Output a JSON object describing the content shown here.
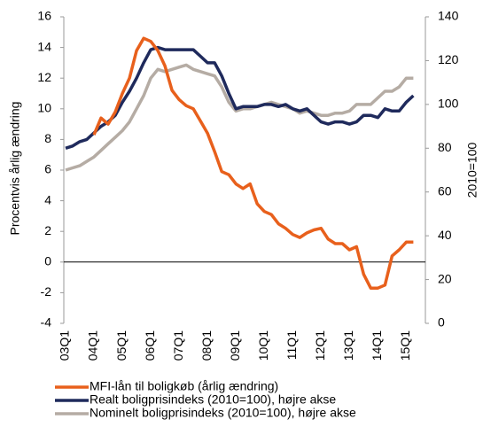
{
  "chart_data": {
    "type": "line",
    "ylabel": "Procentvis årlig ændring",
    "y2label": "2010=100",
    "categories": [
      "03Q1",
      null,
      null,
      null,
      "04Q1",
      null,
      null,
      null,
      "05Q1",
      null,
      null,
      null,
      "06Q1",
      null,
      null,
      null,
      "07Q1",
      null,
      null,
      null,
      "08Q1",
      null,
      null,
      null,
      "09Q1",
      null,
      null,
      null,
      "10Q1",
      null,
      null,
      null,
      "11Q1",
      null,
      null,
      null,
      "12Q1",
      null,
      null,
      null,
      "13Q1",
      null,
      null,
      null,
      "14Q1",
      null,
      null,
      null,
      "15Q1",
      null
    ],
    "ylim": [
      -4,
      16
    ],
    "yticks": [
      -4,
      -2,
      0,
      2,
      4,
      6,
      8,
      10,
      12,
      14,
      16
    ],
    "y2lim": [
      0,
      140
    ],
    "y2ticks": [
      0,
      20,
      40,
      60,
      80,
      100,
      120,
      140
    ],
    "series": [
      {
        "name": "MFI-lån til boligkøb (årlig ændring)",
        "color": "#e8601c",
        "values": [
          null,
          null,
          null,
          null,
          8.3,
          9.4,
          9.0,
          9.8,
          11.0,
          12.0,
          13.8,
          14.6,
          14.4,
          13.8,
          12.8,
          11.2,
          10.6,
          10.2,
          10.0,
          9.2,
          8.4,
          7.2,
          5.9,
          5.7,
          5.1,
          4.8,
          5.1,
          3.8,
          3.3,
          3.1,
          2.5,
          2.2,
          1.8,
          1.6,
          1.9,
          2.1,
          2.2,
          1.5,
          1.2,
          1.2,
          0.8,
          1.0,
          -0.8,
          -1.7,
          -1.7,
          -1.5,
          0.4,
          0.8,
          1.3,
          1.3
        ]
      },
      {
        "name": "Realt boligprisindeks (2010=100), højre akse",
        "color": "#1f2a5c",
        "axis": "y2",
        "values": [
          80,
          81,
          83,
          84,
          87,
          90,
          92,
          95,
          101,
          106,
          112,
          119,
          125,
          126,
          125,
          125,
          125,
          125,
          125,
          122,
          119,
          119,
          113,
          105,
          98,
          99,
          99,
          99,
          100,
          100,
          99,
          100,
          98,
          97,
          98,
          95,
          92,
          91,
          92,
          92,
          91,
          92,
          95,
          95,
          94,
          98,
          97,
          97,
          101,
          104
        ]
      },
      {
        "name": "Nominelt boligprisindeks (2010=100), højre akse",
        "color": "#b5aca4",
        "axis": "y2",
        "values": [
          70,
          71,
          72,
          74,
          76,
          79,
          82,
          85,
          88,
          92,
          98,
          104,
          112,
          116,
          115,
          116,
          117,
          118,
          116,
          115,
          114,
          113,
          108,
          101,
          97,
          98,
          98,
          99,
          100,
          101,
          100,
          99,
          98,
          96,
          97,
          96,
          95,
          95,
          96,
          96,
          97,
          100,
          100,
          100,
          103,
          106,
          106,
          108,
          112,
          112
        ]
      }
    ]
  }
}
